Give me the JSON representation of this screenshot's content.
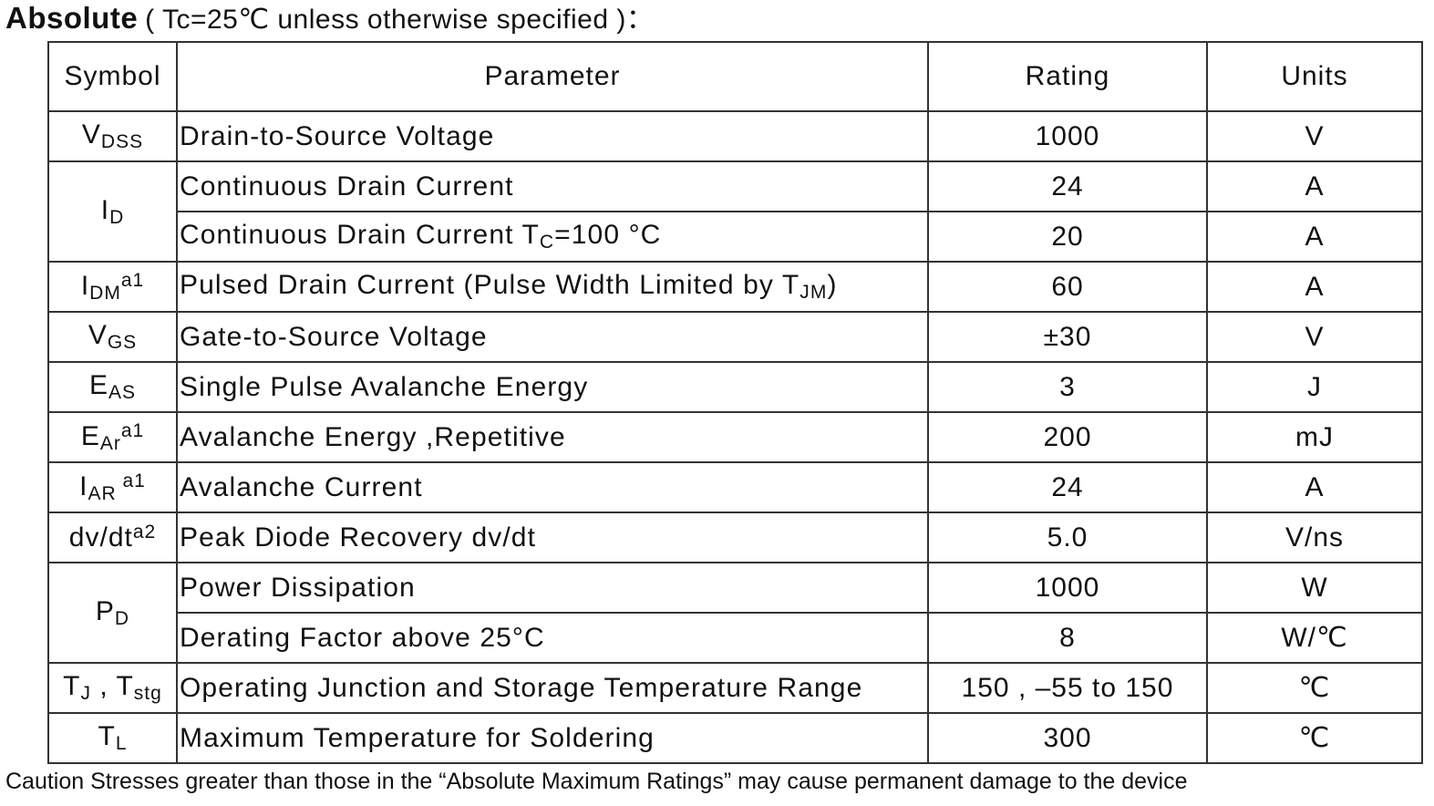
{
  "title": {
    "bold": "Absolute",
    "rest": "( Tc=25℃  unless otherwise specified )："
  },
  "table": {
    "header": [
      "Symbol",
      "Parameter",
      "Rating",
      "Units"
    ],
    "groups": [
      {
        "symbol": [
          {
            "text": "V"
          },
          {
            "text": "DSS",
            "style": "sub"
          }
        ],
        "items": [
          {
            "parameter": [
              {
                "text": "Drain-to-Source Voltage"
              }
            ],
            "rating": "1000",
            "units": "V"
          }
        ]
      },
      {
        "symbol": [
          {
            "text": "I"
          },
          {
            "text": "D",
            "style": "sub"
          }
        ],
        "items": [
          {
            "parameter": [
              {
                "text": "Continuous Drain Current"
              }
            ],
            "rating": "24",
            "units": "A"
          },
          {
            "parameter": [
              {
                "text": "Continuous Drain Current T"
              },
              {
                "text": "C",
                "style": "sub"
              },
              {
                "text": "=100 °C"
              }
            ],
            "rating": "20",
            "units": "A"
          }
        ]
      },
      {
        "symbol": [
          {
            "text": "I"
          },
          {
            "text": "DM",
            "style": "sub"
          },
          {
            "text": "a1",
            "style": "sup"
          }
        ],
        "items": [
          {
            "parameter": [
              {
                "text": "Pulsed Drain Current (Pulse Width Limited by T"
              },
              {
                "text": "JM",
                "style": "sub"
              },
              {
                "text": ")"
              }
            ],
            "rating": "60",
            "units": "A"
          }
        ]
      },
      {
        "symbol": [
          {
            "text": "V"
          },
          {
            "text": "GS",
            "style": "sub"
          }
        ],
        "items": [
          {
            "parameter": [
              {
                "text": "Gate-to-Source Voltage"
              }
            ],
            "rating": "±30",
            "units": "V"
          }
        ]
      },
      {
        "symbol": [
          {
            "text": "E"
          },
          {
            "text": "AS",
            "style": "sub"
          }
        ],
        "items": [
          {
            "parameter": [
              {
                "text": "Single Pulse Avalanche Energy"
              }
            ],
            "rating": "3",
            "units": "J"
          }
        ]
      },
      {
        "symbol": [
          {
            "text": "E"
          },
          {
            "text": "Ar",
            "style": "sub"
          },
          {
            "text": "a1",
            "style": "sup"
          }
        ],
        "items": [
          {
            "parameter": [
              {
                "text": "Avalanche Energy ,Repetitive"
              }
            ],
            "rating": "200",
            "units": "mJ"
          }
        ]
      },
      {
        "symbol": [
          {
            "text": "I"
          },
          {
            "text": "AR",
            "style": "sub"
          },
          {
            "text": " a1",
            "style": "sup"
          }
        ],
        "items": [
          {
            "parameter": [
              {
                "text": "Avalanche Current"
              }
            ],
            "rating": "24",
            "units": "A"
          }
        ]
      },
      {
        "symbol": [
          {
            "text": "dv/dt"
          },
          {
            "text": "a2",
            "style": "sup"
          }
        ],
        "items": [
          {
            "parameter": [
              {
                "text": "Peak Diode Recovery dv/dt"
              }
            ],
            "rating": "5.0",
            "units": "V/ns"
          }
        ]
      },
      {
        "symbol": [
          {
            "text": "P"
          },
          {
            "text": "D",
            "style": "sub"
          }
        ],
        "items": [
          {
            "parameter": [
              {
                "text": "Power Dissipation"
              }
            ],
            "rating": "1000",
            "units": "W"
          },
          {
            "parameter": [
              {
                "text": "Derating Factor above 25°C"
              }
            ],
            "rating": "8",
            "units": "W/℃"
          }
        ]
      },
      {
        "symbol": [
          {
            "text": "T"
          },
          {
            "text": "J",
            "style": "sub"
          },
          {
            "text": " , T"
          },
          {
            "text": "stg",
            "style": "sub"
          }
        ],
        "items": [
          {
            "parameter": [
              {
                "text": "Operating Junction and Storage Temperature Range"
              }
            ],
            "rating": "150 , –55 to 150",
            "units": "℃"
          }
        ]
      },
      {
        "symbol": [
          {
            "text": "T"
          },
          {
            "text": "L",
            "style": "sub"
          }
        ],
        "items": [
          {
            "parameter": [
              {
                "text": "Maximum Temperature for Soldering"
              }
            ],
            "rating": "300",
            "units": "℃"
          }
        ]
      }
    ]
  },
  "footer": "Caution Stresses greater than those in the  “Absolute Maximum Ratings”  may cause permanent damage to the device"
}
